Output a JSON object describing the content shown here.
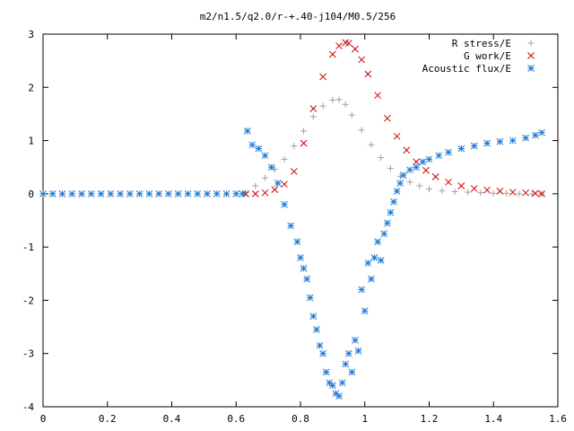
{
  "chart_data": {
    "type": "scatter",
    "title": "m2/n1.5/q2.0/r-+.40-j104/M0.5/256",
    "xlabel": "",
    "ylabel": "",
    "xlim": [
      0,
      1.6
    ],
    "ylim": [
      -4,
      3
    ],
    "xticks": [
      "0",
      "0.2",
      "0.4",
      "0.6",
      "0.8",
      "1",
      "1.2",
      "1.4",
      "1.6"
    ],
    "yticks": [
      "3",
      "2",
      "1",
      "0",
      "-1",
      "-2",
      "-3",
      "-4"
    ],
    "grid": false,
    "legend_position": "top-right",
    "series": [
      {
        "name": "R stress/E",
        "marker": "plus",
        "color": "#a0a0a0",
        "x": [
          0.63,
          0.66,
          0.69,
          0.72,
          0.75,
          0.78,
          0.81,
          0.84,
          0.87,
          0.9,
          0.92,
          0.94,
          0.96,
          0.99,
          1.02,
          1.05,
          1.08,
          1.11,
          1.14,
          1.17,
          1.2,
          1.24,
          1.28,
          1.32,
          1.36,
          1.4,
          1.44,
          1.48,
          1.52,
          1.55
        ],
        "y": [
          0.02,
          0.15,
          0.3,
          0.46,
          0.65,
          0.9,
          1.18,
          1.45,
          1.65,
          1.76,
          1.77,
          1.68,
          1.48,
          1.2,
          0.92,
          0.68,
          0.48,
          0.33,
          0.22,
          0.15,
          0.09,
          0.06,
          0.04,
          0.03,
          0.02,
          0.01,
          0.01,
          0.0,
          0.0,
          0.0
        ]
      },
      {
        "name": "G work/E",
        "marker": "cross",
        "color": "#cc0000",
        "x": [
          0.63,
          0.66,
          0.69,
          0.72,
          0.75,
          0.78,
          0.81,
          0.84,
          0.87,
          0.9,
          0.92,
          0.94,
          0.95,
          0.97,
          0.99,
          1.01,
          1.04,
          1.07,
          1.1,
          1.13,
          1.16,
          1.19,
          1.22,
          1.26,
          1.3,
          1.34,
          1.38,
          1.42,
          1.46,
          1.5,
          1.53,
          1.55
        ],
        "y": [
          0.0,
          0.0,
          0.02,
          0.08,
          0.18,
          0.42,
          0.95,
          1.6,
          2.2,
          2.62,
          2.78,
          2.84,
          2.83,
          2.72,
          2.52,
          2.25,
          1.85,
          1.42,
          1.08,
          0.82,
          0.6,
          0.44,
          0.32,
          0.22,
          0.15,
          0.1,
          0.07,
          0.05,
          0.03,
          0.02,
          0.01,
          0.0
        ]
      },
      {
        "name": "Acoustic flux/E",
        "marker": "star",
        "color": "#1e78d2",
        "x": [
          0.635,
          0.65,
          0.67,
          0.69,
          0.71,
          0.73,
          0.75,
          0.77,
          0.79,
          0.8,
          0.81,
          0.82,
          0.83,
          0.84,
          0.85,
          0.86,
          0.87,
          0.88,
          0.89,
          0.9,
          0.91,
          0.92,
          0.93,
          0.94,
          0.95,
          0.96,
          0.97,
          0.98,
          0.99,
          1.0,
          1.01,
          1.02,
          1.03,
          1.04,
          1.05,
          1.06,
          1.07,
          1.08,
          1.09,
          1.1,
          1.11,
          1.12,
          1.14,
          1.16,
          1.18,
          1.2,
          1.23,
          1.26,
          1.3,
          1.34,
          1.38,
          1.42,
          1.46,
          1.5,
          1.53,
          1.55
        ],
        "y": [
          1.18,
          0.92,
          0.85,
          0.72,
          0.5,
          0.2,
          -0.2,
          -0.6,
          -0.9,
          -1.2,
          -1.4,
          -1.6,
          -1.95,
          -2.3,
          -2.55,
          -2.85,
          -3.0,
          -3.35,
          -3.55,
          -3.6,
          -3.75,
          -3.8,
          -3.55,
          -3.2,
          -3.0,
          -3.35,
          -2.75,
          -2.95,
          -1.8,
          -2.2,
          -1.3,
          -1.6,
          -1.2,
          -0.9,
          -1.25,
          -0.75,
          -0.55,
          -0.35,
          -0.15,
          0.05,
          0.2,
          0.35,
          0.45,
          0.5,
          0.6,
          0.65,
          0.72,
          0.78,
          0.85,
          0.9,
          0.95,
          0.98,
          1.0,
          1.05,
          1.1,
          1.15
        ]
      },
      {
        "name": "",
        "marker": "star",
        "color": "#1e78d2",
        "x": [
          0.0,
          0.03,
          0.06,
          0.09,
          0.12,
          0.15,
          0.18,
          0.21,
          0.24,
          0.27,
          0.3,
          0.33,
          0.36,
          0.39,
          0.42,
          0.45,
          0.48,
          0.51,
          0.54,
          0.57,
          0.6,
          0.62
        ],
        "y": [
          0,
          0,
          0,
          0,
          0,
          0,
          0,
          0,
          0,
          0,
          0,
          0,
          0,
          0,
          0,
          0,
          0,
          0,
          0,
          0,
          0,
          0
        ]
      }
    ]
  }
}
